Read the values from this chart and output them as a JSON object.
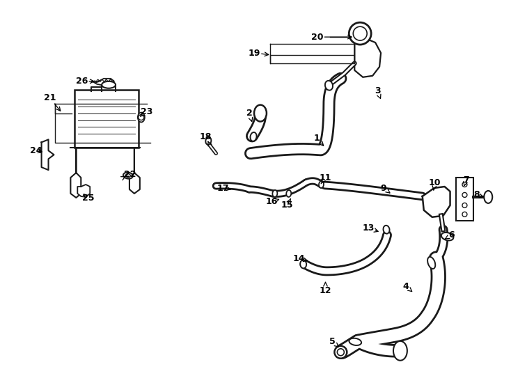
{
  "bg_color": "#ffffff",
  "line_color": "#1a1a1a",
  "label_color": "#000000",
  "fig_width": 7.34,
  "fig_height": 5.4,
  "dpi": 100,
  "labels_arrows": {
    "1": [
      455,
      198,
      468,
      212
    ],
    "2": [
      358,
      162,
      363,
      178
    ],
    "3": [
      543,
      130,
      548,
      142
    ],
    "4": [
      584,
      412,
      596,
      422
    ],
    "5": [
      478,
      492,
      488,
      500
    ],
    "6": [
      650,
      338,
      640,
      344
    ],
    "7": [
      671,
      258,
      668,
      268
    ],
    "8": [
      686,
      280,
      697,
      283
    ],
    "9": [
      552,
      270,
      562,
      278
    ],
    "10": [
      626,
      262,
      624,
      274
    ],
    "11": [
      468,
      255,
      460,
      266
    ],
    "12": [
      468,
      418,
      468,
      402
    ],
    "13": [
      530,
      328,
      548,
      334
    ],
    "14": [
      430,
      372,
      443,
      375
    ],
    "15": [
      413,
      295,
      418,
      285
    ],
    "16": [
      390,
      290,
      402,
      286
    ],
    "17": [
      320,
      270,
      332,
      272
    ],
    "18": [
      295,
      196,
      298,
      202
    ],
    "19": [
      365,
      75,
      390,
      78
    ],
    "20": [
      456,
      52,
      510,
      52
    ],
    "21": [
      70,
      140,
      88,
      162
    ],
    "22": [
      186,
      250,
      180,
      253
    ],
    "23": [
      210,
      160,
      200,
      167
    ],
    "24": [
      50,
      216,
      60,
      218
    ],
    "25": [
      126,
      285,
      118,
      278
    ],
    "26": [
      116,
      116,
      138,
      116
    ]
  }
}
